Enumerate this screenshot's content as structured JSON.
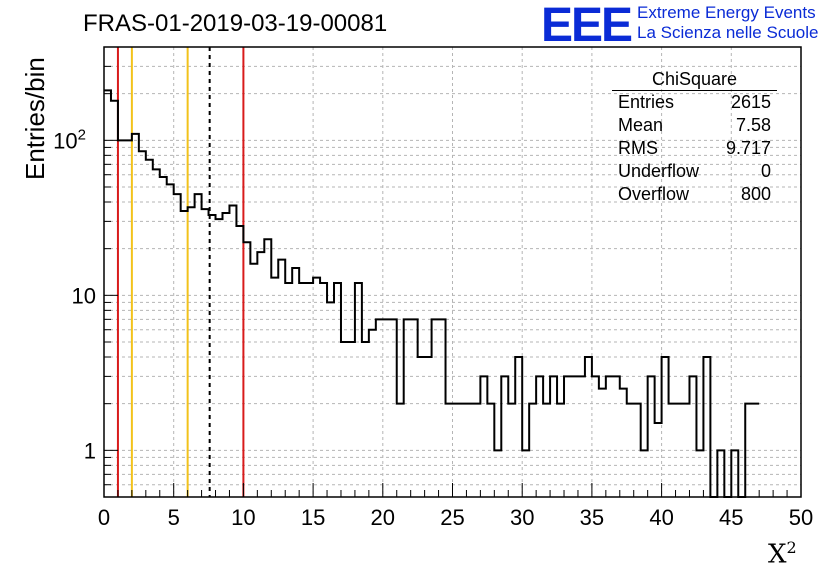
{
  "header": {
    "title": "FRAS-01-2019-03-19-00081"
  },
  "logo": {
    "mark": "EEE",
    "line1": "Extreme Energy Events",
    "line2": "La Scienza nelle Scuole"
  },
  "stats_box": {
    "title": "ChiSquare",
    "rows": [
      {
        "label": "Entries",
        "value": "2615"
      },
      {
        "label": "Mean",
        "value": "7.58"
      },
      {
        "label": "RMS",
        "value": "9.717"
      },
      {
        "label": "Underflow",
        "value": "0"
      },
      {
        "label": "Overflow",
        "value": "800"
      }
    ]
  },
  "colors": {
    "red_line": "#d81b1b",
    "yellow_line": "#f2c21b",
    "logo": "#0a2bd6"
  },
  "chart_data": {
    "type": "histogram",
    "title": "FRAS-01-2019-03-19-00081",
    "xlabel": "X",
    "xlabel_sup": "2",
    "ylabel": "Entries/bin",
    "y_scale": "log",
    "xlim": [
      0,
      50
    ],
    "ylim": [
      0.5,
      400
    ],
    "grid": true,
    "bin_width": 0.5,
    "x_ticks": [
      "0",
      "5",
      "10",
      "15",
      "20",
      "25",
      "30",
      "35",
      "40",
      "45",
      "50"
    ],
    "y_ticks": [
      {
        "value": 1,
        "label": "1",
        "sup": ""
      },
      {
        "value": 10,
        "label": "10",
        "sup": ""
      },
      {
        "value": 100,
        "label": "10",
        "sup": "2"
      }
    ],
    "bin_counts": [
      210,
      180,
      100,
      100,
      110,
      85,
      75,
      65,
      58,
      52,
      45,
      35,
      37,
      45,
      36,
      33,
      31,
      34,
      38,
      28,
      22,
      16,
      19,
      23,
      13,
      17,
      12,
      15,
      12,
      12,
      13,
      12,
      9,
      12,
      5,
      5,
      12,
      5,
      6,
      7,
      7,
      7,
      2,
      7,
      7,
      4,
      4,
      7,
      7,
      2,
      2,
      2,
      2,
      2,
      3,
      2,
      1,
      3,
      2,
      4,
      1,
      2,
      3,
      2,
      3,
      2,
      3,
      3,
      3,
      4,
      3,
      2.5,
      3,
      3,
      2.5,
      2,
      2,
      1,
      3,
      1.5,
      4,
      2,
      2,
      2,
      3,
      1,
      4,
      0.3,
      1,
      0.3,
      1,
      0.3,
      2,
      2
    ],
    "vertical_lines": [
      {
        "x": 1,
        "color": "red",
        "style": "solid"
      },
      {
        "x": 2,
        "color": "yellow",
        "style": "solid"
      },
      {
        "x": 6,
        "color": "yellow",
        "style": "solid"
      },
      {
        "x": 7.58,
        "color": "black",
        "style": "dashed"
      },
      {
        "x": 10,
        "color": "red",
        "style": "solid"
      }
    ]
  }
}
